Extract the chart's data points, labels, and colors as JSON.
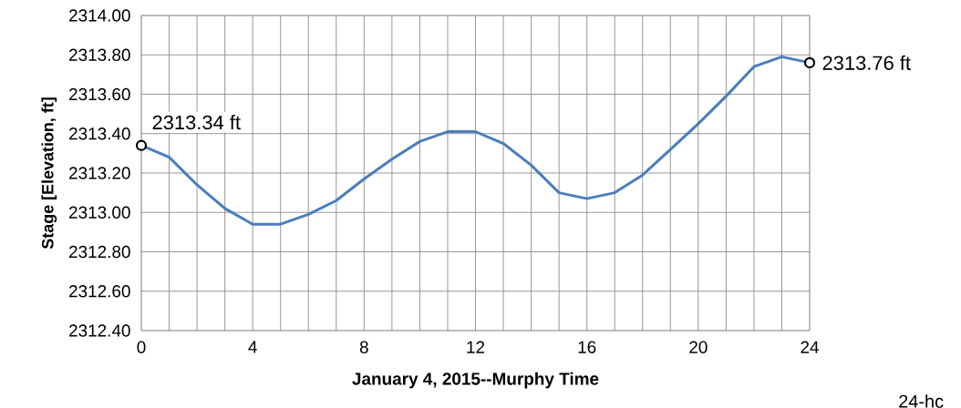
{
  "chart_data": {
    "type": "line",
    "xlabel": "January 4, 2015--Murphy Time",
    "ylabel": "Stage [Elevation, ft]",
    "x": [
      0,
      1,
      2,
      3,
      4,
      5,
      6,
      7,
      8,
      9,
      10,
      11,
      12,
      13,
      14,
      15,
      16,
      17,
      18,
      19,
      20,
      21,
      22,
      23,
      24
    ],
    "series": [
      {
        "color": "#4a7ebb",
        "values": [
          2313.34,
          2313.28,
          2313.14,
          2313.02,
          2312.94,
          2312.94,
          2312.99,
          2313.06,
          2313.17,
          2313.27,
          2313.36,
          2313.41,
          2313.41,
          2313.35,
          2313.24,
          2313.1,
          2313.07,
          2313.1,
          2313.19,
          2313.32,
          2313.45,
          2313.59,
          2313.74,
          2313.79,
          2313.76
        ]
      }
    ],
    "xlim": [
      0,
      24
    ],
    "xticks": [
      0,
      {
        "value": 1,
        "label": null
      },
      {
        "value": 2,
        "label": null
      },
      {
        "value": 3,
        "label": null
      },
      4,
      {
        "value": 5,
        "label": null
      },
      {
        "value": 6,
        "label": null
      },
      {
        "value": 7,
        "label": null
      },
      8,
      {
        "value": 9,
        "label": null
      },
      {
        "value": 10,
        "label": null
      },
      {
        "value": 11,
        "label": null
      },
      12,
      {
        "value": 13,
        "label": null
      },
      {
        "value": 14,
        "label": null
      },
      {
        "value": 15,
        "label": null
      },
      16,
      {
        "value": 17,
        "label": null
      },
      {
        "value": 18,
        "label": null
      },
      {
        "value": 19,
        "label": null
      },
      20,
      {
        "value": 21,
        "label": null
      },
      {
        "value": 22,
        "label": null
      },
      {
        "value": 23,
        "label": null
      },
      24
    ],
    "ylim": [
      2312.4,
      2314.0
    ],
    "yticks": [
      {
        "value": 2312.4,
        "label": "2312.40"
      },
      {
        "value": 2312.6,
        "label": "2312.60"
      },
      {
        "value": 2312.8,
        "label": "2312.80"
      },
      {
        "value": 2313.0,
        "label": "2313.00"
      },
      {
        "value": 2313.2,
        "label": "2313.20"
      },
      {
        "value": 2313.4,
        "label": "2313.40"
      },
      {
        "value": 2313.6,
        "label": "2313.60"
      },
      {
        "value": 2313.8,
        "label": "2313.80"
      },
      {
        "value": 2314.0,
        "label": "2314.00"
      }
    ],
    "grid": true,
    "marker": "none",
    "line_style": "solid",
    "annotations": [
      {
        "text": "2313.34 ft",
        "x": 0,
        "y": 2313.34
      },
      {
        "text": "2313.76 ft",
        "x": 24,
        "y": 2313.76
      },
      "24-hc"
    ]
  }
}
